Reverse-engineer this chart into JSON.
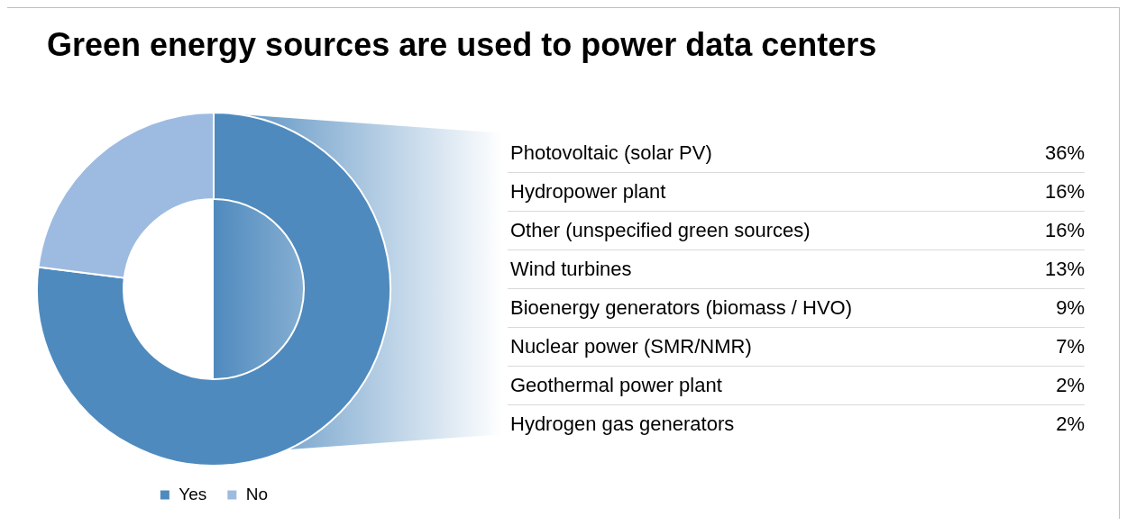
{
  "chart_data": [
    {
      "type": "donut",
      "title": "Green energy sources are used to power data centers",
      "categories": [
        "Yes",
        "No"
      ],
      "values": [
        77,
        23
      ],
      "colors": [
        "#4f8abe",
        "#9dbbe0"
      ],
      "legend": "bottom"
    },
    {
      "type": "other",
      "categories": [
        "Photovoltaic (solar PV)",
        "Hydropower plant",
        "Other (unspecified green sources)",
        "Wind turbines",
        "Bioenergy generators (biomass / HVO)",
        "Nuclear power (SMR/NMR)",
        "Geothermal power plant",
        "Hydrogen gas generators"
      ],
      "values": [
        36,
        16,
        16,
        13,
        9,
        7,
        2,
        2
      ],
      "value_labels": [
        "36%",
        "16%",
        "16%",
        "13%",
        "9%",
        "7%",
        "2%",
        "2%"
      ]
    }
  ]
}
